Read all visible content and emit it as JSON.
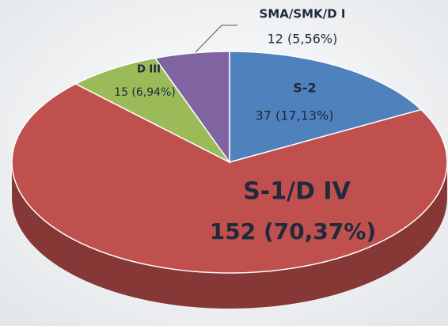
{
  "chart_data": {
    "type": "pie",
    "categories": [
      "S-2",
      "S-1/D IV",
      "D III",
      "SMA/SMK/D I"
    ],
    "values": [
      37,
      152,
      15,
      12
    ],
    "value_labels": [
      "37 (17,13%)",
      "152 (70,37%)",
      "15 (6,94%)",
      "12 (5,56%)"
    ],
    "colors": [
      "#4f81bd",
      "#c0504d",
      "#9bbb59",
      "#8064a2"
    ]
  }
}
